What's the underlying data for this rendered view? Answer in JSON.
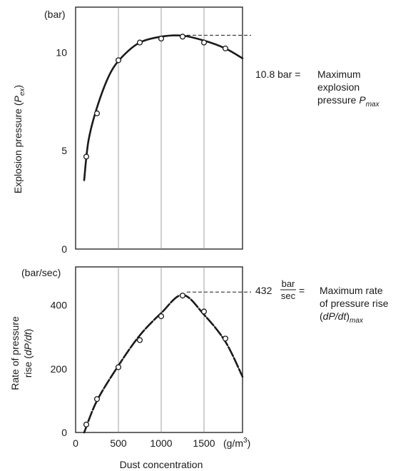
{
  "chart_data": [
    {
      "type": "scatter",
      "panel": "top",
      "ylabel": "Explosion pressure (",
      "ylabel_symbol": "P",
      "ylabel_sub": "ex",
      "ylabel_close": ")",
      "yunit": "(bar)",
      "ylim": [
        0,
        12.3
      ],
      "xlim": [
        0,
        1950
      ],
      "yticks": [
        0,
        5,
        10
      ],
      "xticks": [
        500,
        1000,
        1500
      ],
      "grid": "vertical",
      "points": [
        {
          "x": 125,
          "y": 4.7
        },
        {
          "x": 250,
          "y": 6.9
        },
        {
          "x": 500,
          "y": 9.6
        },
        {
          "x": 750,
          "y": 10.5
        },
        {
          "x": 1000,
          "y": 10.7
        },
        {
          "x": 1250,
          "y": 10.8
        },
        {
          "x": 1500,
          "y": 10.5
        },
        {
          "x": 1750,
          "y": 10.2
        }
      ],
      "curve": [
        {
          "x": 100,
          "y": 3.5
        },
        {
          "x": 150,
          "y": 5.5
        },
        {
          "x": 250,
          "y": 7.2
        },
        {
          "x": 400,
          "y": 8.9
        },
        {
          "x": 550,
          "y": 9.8
        },
        {
          "x": 750,
          "y": 10.5
        },
        {
          "x": 1000,
          "y": 10.8
        },
        {
          "x": 1250,
          "y": 10.85
        },
        {
          "x": 1500,
          "y": 10.6
        },
        {
          "x": 1750,
          "y": 10.2
        },
        {
          "x": 1950,
          "y": 9.7
        }
      ],
      "annotation": {
        "at_x": 1250,
        "value": 10.8,
        "value_text": "10.8 bar =",
        "lines": [
          "Maximum",
          "explosion",
          "pressure "
        ],
        "symbol": "P",
        "symbol_sub": "max"
      }
    },
    {
      "type": "scatter",
      "panel": "bottom",
      "ylabel_line1": "Rate of pressure",
      "ylabel_line2_pre": "rise (",
      "ylabel_line2_var": "dP/dt",
      "ylabel_line2_post": ")",
      "yunit": "(bar/sec)",
      "ylim": [
        0,
        520
      ],
      "xlim": [
        0,
        1950
      ],
      "yticks": [
        0,
        200,
        400
      ],
      "xticks": [
        0,
        500,
        1000,
        1500
      ],
      "xunit": "(g/m",
      "xunit_sup": "3",
      "xunit_close": ")",
      "xlabel": "Dust concentration",
      "grid": "vertical",
      "points": [
        {
          "x": 125,
          "y": 25
        },
        {
          "x": 250,
          "y": 105
        },
        {
          "x": 500,
          "y": 205
        },
        {
          "x": 750,
          "y": 290
        },
        {
          "x": 1000,
          "y": 365
        },
        {
          "x": 1250,
          "y": 430
        },
        {
          "x": 1500,
          "y": 380
        },
        {
          "x": 1750,
          "y": 295
        }
      ],
      "curve": [
        {
          "x": 100,
          "y": 0
        },
        {
          "x": 250,
          "y": 100
        },
        {
          "x": 500,
          "y": 210
        },
        {
          "x": 750,
          "y": 305
        },
        {
          "x": 1000,
          "y": 375
        },
        {
          "x": 1250,
          "y": 432
        },
        {
          "x": 1500,
          "y": 370
        },
        {
          "x": 1750,
          "y": 285
        },
        {
          "x": 1950,
          "y": 175
        }
      ],
      "annotation": {
        "at_x": 1250,
        "value": 432,
        "value_text": "432",
        "frac_num": "bar",
        "frac_den": "sec",
        "equals": "=",
        "lines": [
          "Maximum rate",
          "of pressure rise"
        ],
        "last_pre": "(",
        "last_var": "dP/dt",
        "last_post": ")",
        "last_sub": "max"
      }
    }
  ]
}
